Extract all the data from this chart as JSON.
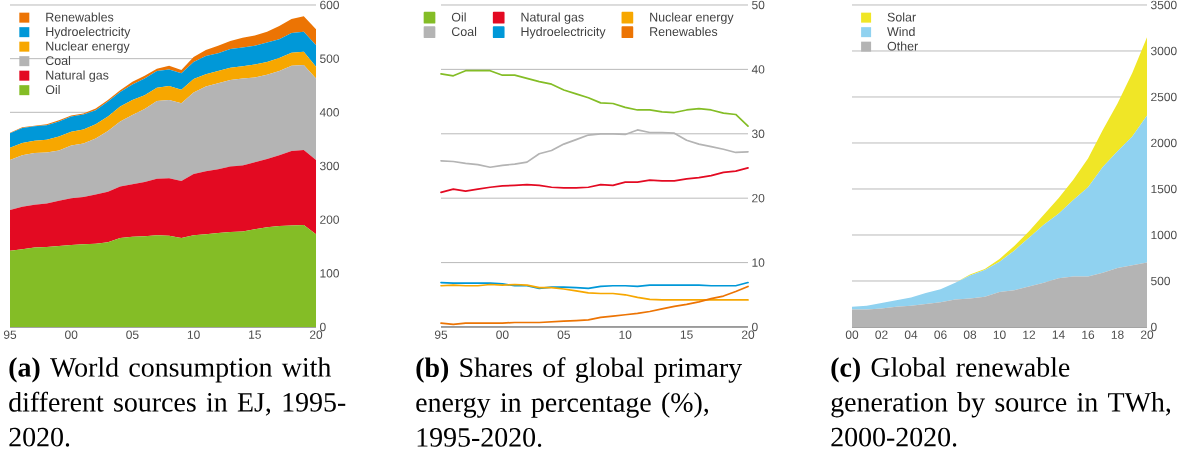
{
  "chart_data": [
    {
      "type": "area",
      "title": "**(a)** World consumption with different sources in EJ, 1995-2020.",
      "stacked": true,
      "grid": "y",
      "legend": "top left",
      "x": [
        1995,
        1996,
        1997,
        1998,
        1999,
        2000,
        2001,
        2002,
        2003,
        2004,
        2005,
        2006,
        2007,
        2008,
        2009,
        2010,
        2011,
        2012,
        2013,
        2014,
        2015,
        2016,
        2017,
        2018,
        2019,
        2020
      ],
      "xlim": [
        1995,
        2020
      ],
      "xticks": [
        {
          "value": 1995,
          "label": "95"
        },
        {
          "value": 2000,
          "label": "00"
        },
        {
          "value": 2005,
          "label": "05"
        },
        {
          "value": 2010,
          "label": "10"
        },
        {
          "value": 2015,
          "label": "15"
        },
        {
          "value": 2020,
          "label": "20"
        }
      ],
      "ylim": [
        0,
        600
      ],
      "yticks": [
        0,
        100,
        200,
        300,
        400,
        500,
        600
      ],
      "series": [
        {
          "name": "Oil",
          "color": "#84bd26",
          "values": [
            142,
            145,
            148,
            149,
            151,
            153,
            154,
            155,
            158,
            166,
            168,
            169,
            171,
            170,
            166,
            171,
            173,
            175,
            177,
            178,
            182,
            186,
            188,
            189,
            190,
            173
          ]
        },
        {
          "name": "Natural gas",
          "color": "#e30a22",
          "values": [
            76,
            79,
            80,
            81,
            84,
            87,
            88,
            92,
            94,
            96,
            98,
            101,
            105,
            107,
            106,
            114,
            117,
            119,
            122,
            123,
            125,
            127,
            132,
            139,
            140,
            138
          ]
        },
        {
          "name": "Coal",
          "color": "#b4b4b4",
          "values": [
            93,
            96,
            96,
            95,
            94,
            98,
            100,
            104,
            113,
            121,
            129,
            136,
            145,
            146,
            145,
            152,
            158,
            160,
            161,
            162,
            158,
            157,
            157,
            159,
            158,
            152
          ]
        },
        {
          "name": "Nuclear energy",
          "color": "#f7a700",
          "values": [
            23,
            23,
            23,
            24,
            26,
            26,
            26,
            27,
            27,
            28,
            28,
            26,
            25,
            26,
            25,
            25,
            23,
            23,
            23,
            23,
            24,
            24,
            24,
            24,
            25,
            22
          ]
        },
        {
          "name": "Hydroelectricity",
          "color": "#0098d8",
          "values": [
            27,
            28,
            27,
            27,
            28,
            28,
            28,
            26,
            28,
            27,
            29,
            31,
            31,
            31,
            31,
            32,
            34,
            33,
            35,
            35,
            35,
            36,
            35,
            37,
            37,
            40
          ]
        },
        {
          "name": "Renewables",
          "color": "#ec7404",
          "values": [
            1,
            1,
            1,
            2,
            2,
            2,
            2,
            3,
            3,
            3,
            5,
            5,
            4,
            7,
            6,
            9,
            11,
            14,
            15,
            18,
            19,
            20,
            25,
            26,
            29,
            30
          ]
        }
      ]
    },
    {
      "type": "line",
      "title": "**(b)** Shares of global primary energy in percentage (%), 1995-2020.",
      "grid": "y",
      "legend": "top right",
      "x": [
        1995,
        1996,
        1997,
        1998,
        1999,
        2000,
        2001,
        2002,
        2003,
        2004,
        2005,
        2006,
        2007,
        2008,
        2009,
        2010,
        2011,
        2012,
        2013,
        2014,
        2015,
        2016,
        2017,
        2018,
        2019,
        2020
      ],
      "xlim": [
        1995,
        2020
      ],
      "xticks": [
        {
          "value": 1995,
          "label": "95"
        },
        {
          "value": 2000,
          "label": "00"
        },
        {
          "value": 2005,
          "label": "05"
        },
        {
          "value": 2010,
          "label": "10"
        },
        {
          "value": 2015,
          "label": "15"
        },
        {
          "value": 2020,
          "label": "20"
        }
      ],
      "ylim": [
        0,
        50
      ],
      "yticks": [
        0,
        10,
        20,
        30,
        40,
        50
      ],
      "series": [
        {
          "name": "Oil",
          "color": "#84bd26",
          "values": [
            39.3,
            39.0,
            39.8,
            39.8,
            39.8,
            39.1,
            39.1,
            38.6,
            38.1,
            37.7,
            36.8,
            36.2,
            35.6,
            34.8,
            34.7,
            34.1,
            33.7,
            33.7,
            33.4,
            33.3,
            33.7,
            33.9,
            33.7,
            33.2,
            33.0,
            31.2
          ]
        },
        {
          "name": "Coal",
          "color": "#b4b4b4",
          "values": [
            25.8,
            25.7,
            25.4,
            25.2,
            24.8,
            25.1,
            25.3,
            25.6,
            26.9,
            27.4,
            28.4,
            29.1,
            29.8,
            30.0,
            30.0,
            29.9,
            30.6,
            30.2,
            30.2,
            30.1,
            29.0,
            28.4,
            28.0,
            27.6,
            27.1,
            27.2
          ]
        },
        {
          "name": "Natural gas",
          "color": "#e30a22",
          "values": [
            20.9,
            21.4,
            21.1,
            21.4,
            21.7,
            21.9,
            22.0,
            22.1,
            22.0,
            21.7,
            21.6,
            21.6,
            21.7,
            22.1,
            22.0,
            22.5,
            22.5,
            22.8,
            22.7,
            22.7,
            23.0,
            23.2,
            23.5,
            24.0,
            24.2,
            24.7
          ]
        },
        {
          "name": "Hydroelectricity",
          "color": "#0098d8",
          "values": [
            6.9,
            6.8,
            6.8,
            6.8,
            6.8,
            6.7,
            6.4,
            6.4,
            6.0,
            6.2,
            6.2,
            6.1,
            6.0,
            6.3,
            6.4,
            6.4,
            6.3,
            6.5,
            6.5,
            6.5,
            6.5,
            6.5,
            6.4,
            6.4,
            6.4,
            6.9
          ]
        },
        {
          "name": "Nuclear energy",
          "color": "#f7a700",
          "values": [
            6.4,
            6.5,
            6.4,
            6.4,
            6.6,
            6.5,
            6.6,
            6.5,
            6.1,
            6.1,
            5.9,
            5.6,
            5.3,
            5.2,
            5.2,
            5.0,
            4.6,
            4.3,
            4.2,
            4.2,
            4.2,
            4.2,
            4.2,
            4.2,
            4.2,
            4.2
          ]
        },
        {
          "name": "Renewables",
          "color": "#ec7404",
          "values": [
            0.6,
            0.4,
            0.6,
            0.6,
            0.6,
            0.6,
            0.7,
            0.7,
            0.7,
            0.8,
            0.9,
            1.0,
            1.1,
            1.5,
            1.7,
            1.9,
            2.1,
            2.4,
            2.8,
            3.2,
            3.5,
            3.9,
            4.4,
            4.8,
            5.5,
            6.3
          ]
        }
      ]
    },
    {
      "type": "area",
      "title": "**(c)** Global renewable generation by source in TWh, 2000-2020.",
      "stacked": true,
      "grid": "y",
      "legend": "top left",
      "x": [
        2000,
        2001,
        2002,
        2003,
        2004,
        2005,
        2006,
        2007,
        2008,
        2009,
        2010,
        2011,
        2012,
        2013,
        2014,
        2015,
        2016,
        2017,
        2018,
        2019,
        2020
      ],
      "xlim": [
        2000,
        2020
      ],
      "xticks": [
        {
          "value": 2000,
          "label": "00"
        },
        {
          "value": 2002,
          "label": "02"
        },
        {
          "value": 2004,
          "label": "04"
        },
        {
          "value": 2006,
          "label": "06"
        },
        {
          "value": 2008,
          "label": "08"
        },
        {
          "value": 2010,
          "label": "10"
        },
        {
          "value": 2012,
          "label": "12"
        },
        {
          "value": 2014,
          "label": "14"
        },
        {
          "value": 2016,
          "label": "16"
        },
        {
          "value": 2018,
          "label": "18"
        },
        {
          "value": 2020,
          "label": "20"
        }
      ],
      "ylim": [
        0,
        3500
      ],
      "yticks": [
        0,
        500,
        1000,
        1500,
        2000,
        2500,
        3000,
        3500
      ],
      "series": [
        {
          "name": "Other",
          "color": "#b4b4b4",
          "values": [
            190,
            190,
            200,
            220,
            230,
            250,
            270,
            300,
            310,
            330,
            380,
            400,
            440,
            480,
            530,
            550,
            550,
            590,
            640,
            670,
            700
          ]
        },
        {
          "name": "Wind",
          "color": "#90d2f0",
          "values": [
            30,
            40,
            60,
            70,
            90,
            120,
            140,
            180,
            250,
            290,
            330,
            430,
            530,
            630,
            700,
            830,
            970,
            1150,
            1270,
            1400,
            1600
          ]
        },
        {
          "name": "Solar",
          "color": "#f0e626",
          "values": [
            0,
            0,
            0,
            0,
            0,
            0,
            0,
            0,
            10,
            10,
            30,
            50,
            70,
            110,
            170,
            220,
            310,
            400,
            520,
            690,
            850
          ]
        }
      ]
    }
  ]
}
